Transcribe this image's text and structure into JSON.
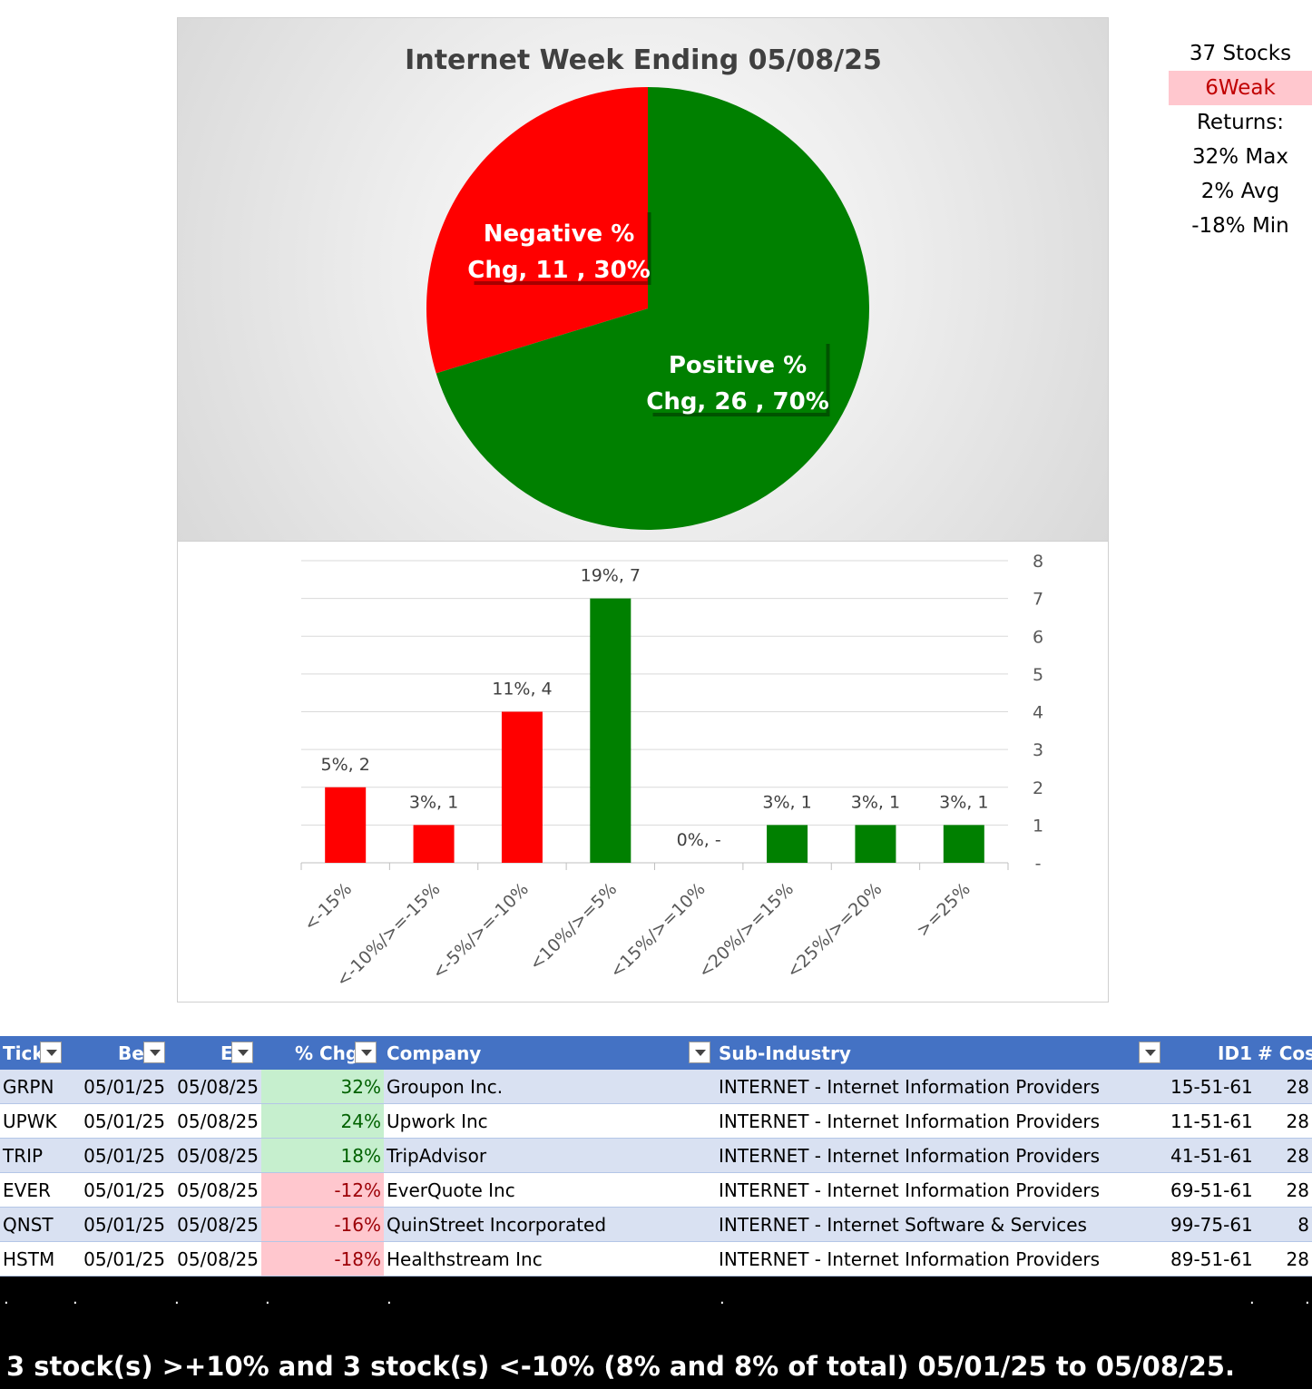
{
  "pie_chart": {
    "title": "Internet Week Ending 05/08/25",
    "colors": {
      "negative": "#ff0000",
      "positive": "#008000"
    }
  },
  "chart_data": [
    {
      "type": "pie",
      "title": "Internet Week Ending 05/08/25",
      "slices": [
        {
          "label_line1": "Negative %",
          "label_line2": "Chg,  11 , 30%",
          "value": 11,
          "percent": 30,
          "color": "#ff0000"
        },
        {
          "label_line1": "Positive %",
          "label_line2": "Chg,  26 , 70%",
          "value": 26,
          "percent": 70,
          "color": "#008000"
        }
      ]
    },
    {
      "type": "bar",
      "categories": [
        "<-15%",
        "<-10%/>=-15%",
        "<-5%/>=-10%",
        "<10%/>=5%",
        "<15%/>=10%",
        "<20%/>=15%",
        "<25%/>=20%",
        ">=25%"
      ],
      "values": [
        2,
        1,
        4,
        7,
        0,
        1,
        1,
        1
      ],
      "data_labels": [
        "5%,  2",
        "3%,  1",
        "11%,  4",
        "19%,  7",
        "0%,  -",
        "3%,  1",
        "3%,  1",
        "3%,  1"
      ],
      "colors": [
        "#ff0000",
        "#ff0000",
        "#ff0000",
        "#008000",
        "#008000",
        "#008000",
        "#008000",
        "#008000"
      ],
      "yticks": [
        "-",
        "1",
        "2",
        "3",
        "4",
        "5",
        "6",
        "7",
        "8"
      ],
      "ylim": [
        0,
        8
      ],
      "y_axis_side": "right",
      "grid": true
    }
  ],
  "stats": {
    "stocks": "37 Stocks",
    "weak": "6Weak",
    "returns_label": "Returns:",
    "max": "32% Max",
    "avg": "2% Avg",
    "min": "-18% Min"
  },
  "table": {
    "headers": {
      "ticker": "Tick",
      "begin": "Be",
      "end": "E",
      "chg": "% Chg",
      "company": "Company",
      "subindustry": "Sub-Industry",
      "id1": "ID1",
      "cos": "# Cos"
    },
    "rows": [
      {
        "ticker": "GRPN",
        "begin": "05/01/25",
        "end": "05/08/25",
        "chg": "32%",
        "company": "Groupon Inc.",
        "subindustry": "INTERNET - Internet Information Providers",
        "id1": "15-51-61",
        "cos": "28"
      },
      {
        "ticker": "UPWK",
        "begin": "05/01/25",
        "end": "05/08/25",
        "chg": "24%",
        "company": "Upwork Inc",
        "subindustry": "INTERNET - Internet Information Providers",
        "id1": "11-51-61",
        "cos": "28"
      },
      {
        "ticker": "TRIP",
        "begin": "05/01/25",
        "end": "05/08/25",
        "chg": "18%",
        "company": "TripAdvisor",
        "subindustry": "INTERNET - Internet Information Providers",
        "id1": "41-51-61",
        "cos": "28"
      },
      {
        "ticker": "EVER",
        "begin": "05/01/25",
        "end": "05/08/25",
        "chg": "-12%",
        "company": "EverQuote Inc",
        "subindustry": "INTERNET - Internet Information Providers",
        "id1": "69-51-61",
        "cos": "28"
      },
      {
        "ticker": "QNST",
        "begin": "05/01/25",
        "end": "05/08/25",
        "chg": "-16%",
        "company": "QuinStreet Incorporated",
        "subindustry": "INTERNET - Internet Software & Services",
        "id1": "99-75-61",
        "cos": "8"
      },
      {
        "ticker": "HSTM",
        "begin": "05/01/25",
        "end": "05/08/25",
        "chg": "-18%",
        "company": "Healthstream Inc",
        "subindustry": "INTERNET - Internet Information Providers",
        "id1": "89-51-61",
        "cos": "28"
      }
    ]
  },
  "footer": {
    "dot": ".",
    "summary": "3 stock(s) >+10% and 3 stock(s) <-10% (8% and 8% of total) 05/01/25 to 05/08/25."
  }
}
